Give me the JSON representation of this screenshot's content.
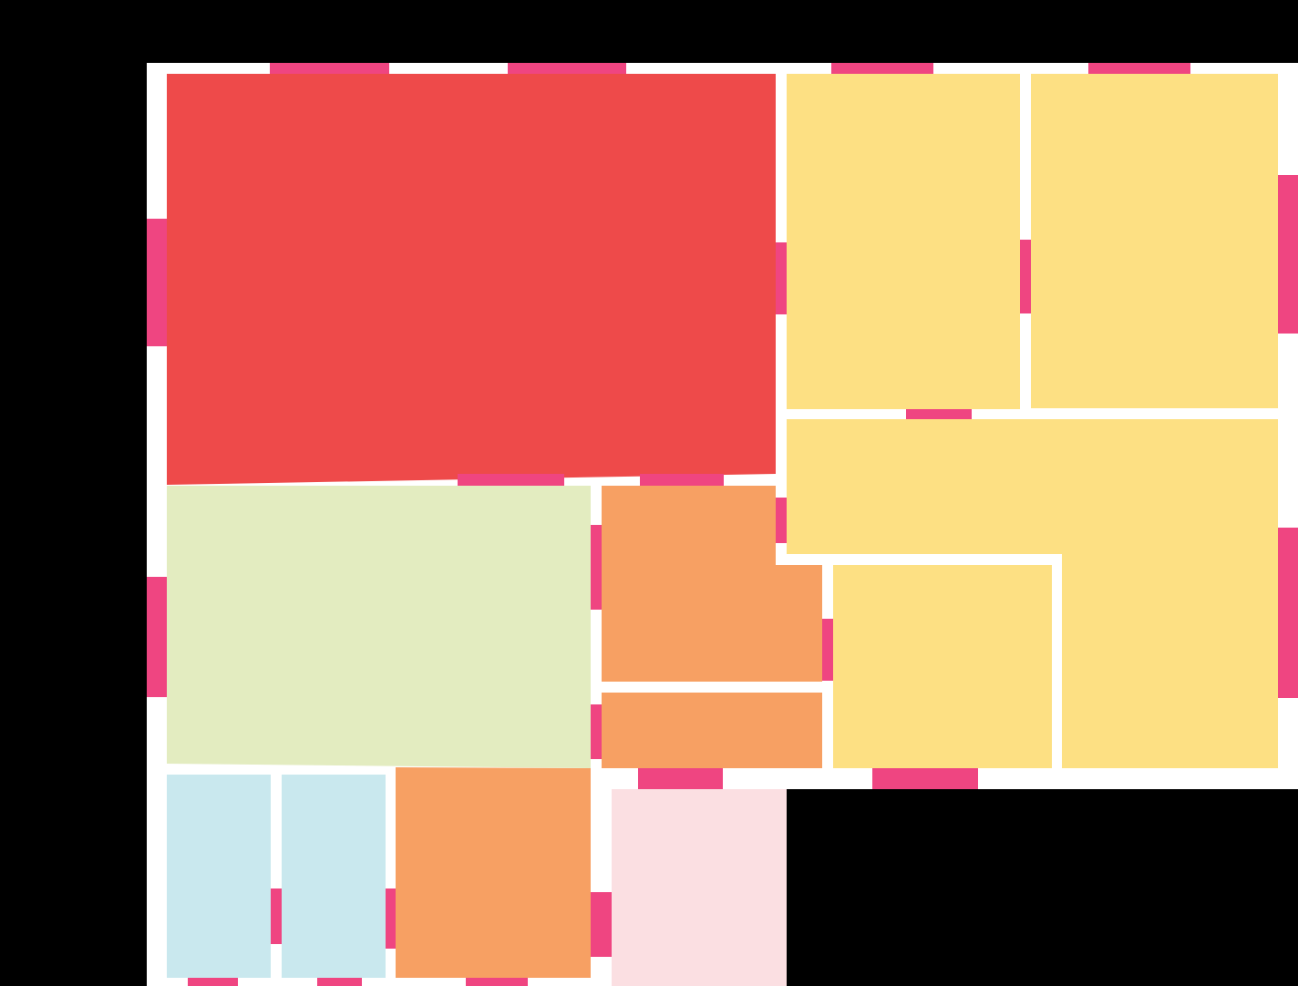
{
  "colors": {
    "background": "#000000",
    "wall": "#ffffff",
    "opening": "#ef4581",
    "living": "#ee4a4a",
    "bedroom": "#fde083",
    "dining": "#e3ecc0",
    "utility": "#f7a063",
    "bathroom": "#c9e8ee",
    "entrance": "#fbdfe2"
  },
  "rooms": [
    {
      "id": "room-large-red",
      "type": "living"
    },
    {
      "id": "room-yellow-top-center",
      "type": "bedroom"
    },
    {
      "id": "room-yellow-top-right",
      "type": "bedroom"
    },
    {
      "id": "room-yellow-l-shaped",
      "type": "bedroom"
    },
    {
      "id": "room-yellow-bottom-center",
      "type": "bedroom"
    },
    {
      "id": "room-green",
      "type": "dining"
    },
    {
      "id": "room-orange-l-shaped",
      "type": "utility"
    },
    {
      "id": "room-orange-strip",
      "type": "utility"
    },
    {
      "id": "room-orange-bottom",
      "type": "utility"
    },
    {
      "id": "room-blue-left",
      "type": "bathroom"
    },
    {
      "id": "room-blue-right",
      "type": "bathroom"
    },
    {
      "id": "room-pink",
      "type": "entrance"
    }
  ]
}
